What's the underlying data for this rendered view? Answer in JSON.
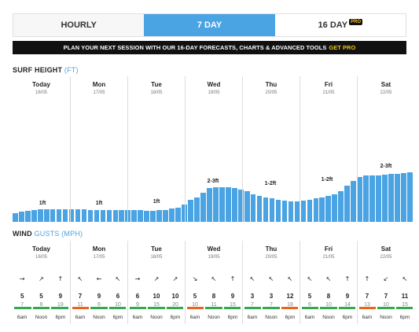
{
  "tabs": [
    {
      "label": "HOURLY",
      "active": false
    },
    {
      "label": "7 DAY",
      "active": true
    },
    {
      "label": "16 DAY",
      "active": false,
      "badge": "PRO"
    }
  ],
  "banner": {
    "text": "PLAN YOUR NEXT SESSION WITH OUR 16-DAY FORECASTS, CHARTS & ADVANCED TOOLS",
    "cta": "GET PRO"
  },
  "surf": {
    "title": "SURF HEIGHT",
    "unit": "(FT)",
    "days": [
      {
        "name": "Today",
        "date": "16/05",
        "label": "1ft"
      },
      {
        "name": "Mon",
        "date": "17/05",
        "label": "1ft"
      },
      {
        "name": "Tue",
        "date": "18/05",
        "label": "1ft"
      },
      {
        "name": "Wed",
        "date": "19/05",
        "label": "2-3ft"
      },
      {
        "name": "Thu",
        "date": "20/05",
        "label": "1-2ft"
      },
      {
        "name": "Fri",
        "date": "21/05",
        "label": "1-2ft"
      },
      {
        "name": "Sat",
        "date": "22/05",
        "label": "2-3ft"
      }
    ],
    "bar_heights_ft": [
      0.6,
      0.7,
      0.75,
      0.8,
      0.85,
      0.85,
      0.85,
      0.85,
      0.85,
      0.85,
      0.85,
      0.85,
      0.8,
      0.8,
      0.8,
      0.8,
      0.8,
      0.8,
      0.8,
      0.8,
      0.8,
      0.75,
      0.75,
      0.8,
      0.8,
      0.9,
      1.0,
      1.2,
      1.5,
      1.7,
      2.0,
      2.3,
      2.4,
      2.4,
      2.4,
      2.3,
      2.2,
      2.1,
      1.9,
      1.8,
      1.7,
      1.6,
      1.5,
      1.45,
      1.4,
      1.4,
      1.45,
      1.5,
      1.6,
      1.7,
      1.8,
      1.9,
      2.1,
      2.5,
      2.8,
      3.1,
      3.2,
      3.2,
      3.2,
      3.25,
      3.3,
      3.3,
      3.35,
      3.4
    ],
    "y_max_ft": 10
  },
  "wind": {
    "title": "WIND",
    "gusts_word": "GUSTS",
    "unit": "(MPH)",
    "days": [
      {
        "name": "Today",
        "date": "16/05",
        "arrows": [
          "→",
          "↗",
          "↑"
        ],
        "speeds": [
          "5",
          "5",
          "9"
        ],
        "gusts": [
          "7",
          "8",
          "18"
        ],
        "ratings": [
          "#34a853",
          "#34a853",
          "#34a853"
        ],
        "times": [
          "6am",
          "Noon",
          "6pm"
        ]
      },
      {
        "name": "Mon",
        "date": "17/05",
        "arrows": [
          "↖",
          "←",
          "↖"
        ],
        "speeds": [
          "7",
          "9",
          "6"
        ],
        "gusts": [
          "11",
          "6",
          "10"
        ],
        "ratings": [
          "#e8651c",
          "#34a853",
          "#34a853"
        ],
        "times": [
          "6am",
          "Noon",
          "6pm"
        ]
      },
      {
        "name": "Tue",
        "date": "18/05",
        "arrows": [
          "→",
          "↗",
          "↗"
        ],
        "speeds": [
          "6",
          "10",
          "10"
        ],
        "gusts": [
          "9",
          "15",
          "20"
        ],
        "ratings": [
          "#34a853",
          "#34a853",
          "#34a853"
        ],
        "times": [
          "6am",
          "Noon",
          "6pm"
        ]
      },
      {
        "name": "Wed",
        "date": "19/05",
        "arrows": [
          "↘",
          "↖",
          "↑"
        ],
        "speeds": [
          "5",
          "8",
          "9"
        ],
        "gusts": [
          "10",
          "11",
          "15"
        ],
        "ratings": [
          "#e8651c",
          "#34a853",
          "#34a853"
        ],
        "times": [
          "6am",
          "Noon",
          "6pm"
        ]
      },
      {
        "name": "Thu",
        "date": "20/05",
        "arrows": [
          "↖",
          "↖",
          "↖"
        ],
        "speeds": [
          "3",
          "3",
          "12"
        ],
        "gusts": [
          "7",
          "7",
          "18"
        ],
        "ratings": [
          "#34a853",
          "#34a853",
          "#e8651c"
        ],
        "times": [
          "6am",
          "Noon",
          "6pm"
        ]
      },
      {
        "name": "Fri",
        "date": "21/05",
        "arrows": [
          "↖",
          "↖",
          "↑"
        ],
        "speeds": [
          "5",
          "8",
          "9"
        ],
        "gusts": [
          "6",
          "10",
          "14"
        ],
        "ratings": [
          "#34a853",
          "#34a853",
          "#34a853"
        ],
        "times": [
          "6am",
          "Noon",
          "6pm"
        ]
      },
      {
        "name": "Sat",
        "date": "22/05",
        "arrows": [
          "↑",
          "↙",
          "↖"
        ],
        "speeds": [
          "7",
          "7",
          "11"
        ],
        "gusts": [
          "13",
          "10",
          "15"
        ],
        "ratings": [
          "#e8651c",
          "#34a853",
          "#34a853"
        ],
        "times": [
          "6am",
          "Noon",
          "6pm"
        ]
      }
    ]
  }
}
